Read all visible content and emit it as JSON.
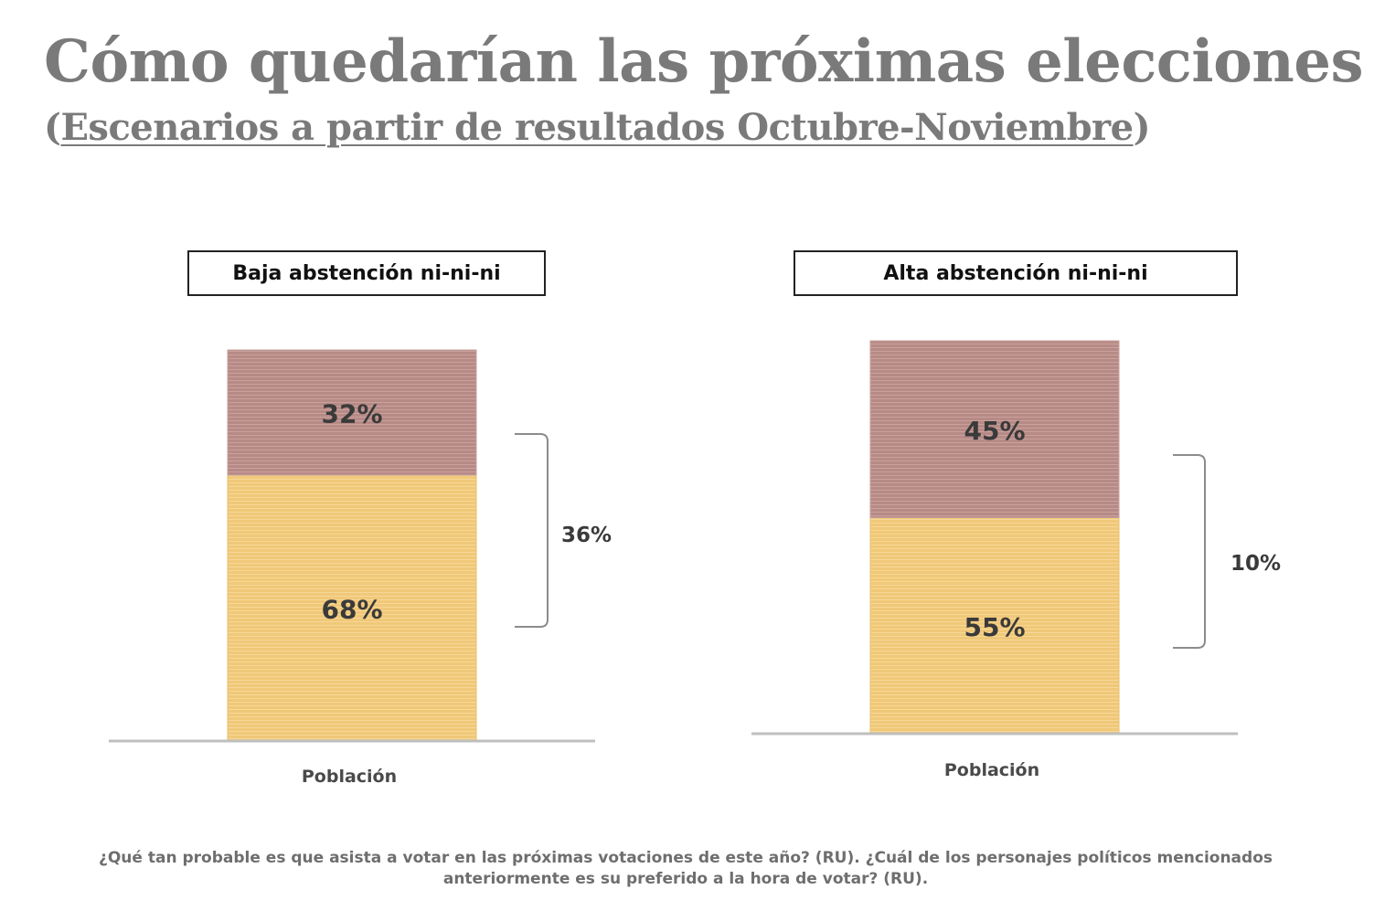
{
  "title": "Cómo quedarían las próximas elecciones",
  "subtitle": {
    "open": "(",
    "text": "Escenarios a partir de resultados Octubre-Noviembre",
    "close": ")"
  },
  "colors": {
    "top_segment": "#b78a86",
    "bottom_segment": "#f0c878",
    "axis": "#bfbfbf",
    "bracket": "#8c8c8c",
    "title": "#7a7a7a"
  },
  "chart_data": [
    {
      "type": "bar",
      "stacked": true,
      "title": "Baja abstención ni-ni-ni",
      "categories": [
        "Población"
      ],
      "series": [
        {
          "values": [
            68
          ],
          "labels": [
            "68%"
          ]
        },
        {
          "values": [
            32
          ],
          "labels": [
            "32%"
          ]
        }
      ],
      "ylim": [
        0,
        100
      ],
      "grid": false,
      "annotation": "36%"
    },
    {
      "type": "bar",
      "stacked": true,
      "title": "Alta abstención ni-ni-ni",
      "categories": [
        "Población"
      ],
      "series": [
        {
          "values": [
            55
          ],
          "labels": [
            "55%"
          ]
        },
        {
          "values": [
            45
          ],
          "labels": [
            "45%"
          ]
        }
      ],
      "ylim": [
        0,
        100
      ],
      "grid": false,
      "annotation": "10%"
    }
  ],
  "footnote": "¿Qué tan probable es que asista a votar en las próximas votaciones de este año? (RU). ¿Cuál de los personajes políticos mencionados anteriormente es su preferido a la hora de votar? (RU)."
}
